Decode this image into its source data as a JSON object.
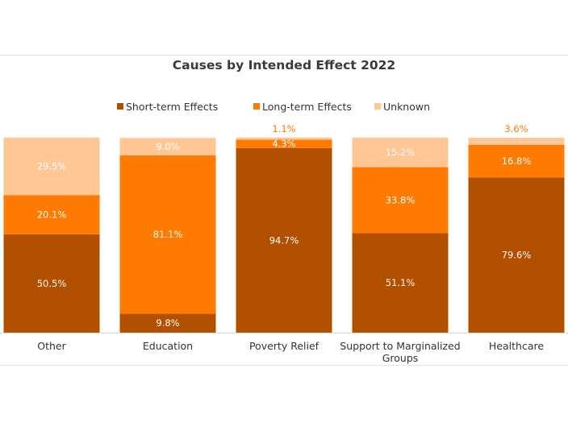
{
  "chart_data": {
    "type": "bar",
    "stacked": true,
    "title": "Causes by Intended Effect 2022",
    "legend_position": "top",
    "categories": [
      "Other",
      "Education",
      "Poverty Relief",
      "Support to Marginalized Groups",
      "Healthcare"
    ],
    "series": [
      {
        "name": "Short-term Effects",
        "color": "#b35000",
        "values": [
          50.5,
          9.8,
          94.7,
          51.1,
          79.6
        ]
      },
      {
        "name": "Long-term Effects",
        "color": "#ff7a00",
        "values": [
          20.1,
          81.1,
          4.3,
          33.8,
          16.8
        ]
      },
      {
        "name": "Unknown",
        "color": "#ffc796",
        "values": [
          29.5,
          9.0,
          1.1,
          15.2,
          3.6
        ]
      }
    ],
    "data_labels": [
      [
        "50.5%",
        "9.8%",
        "94.7%",
        "51.1%",
        "79.6%"
      ],
      [
        "20.1%",
        "81.1%",
        "4.3%",
        "33.8%",
        "16.8%"
      ],
      [
        "29.5%",
        "9.0%",
        "1.1%",
        "15.2%",
        "3.6%"
      ]
    ],
    "ylim": [
      0,
      100
    ],
    "grid": false
  }
}
